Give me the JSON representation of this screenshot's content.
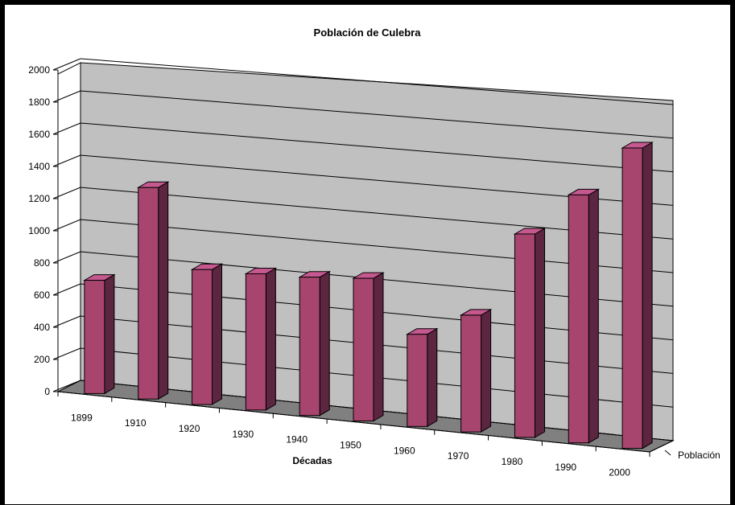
{
  "chart_data": {
    "type": "bar",
    "title": "Población de Culebra",
    "xlabel": "Décadas",
    "ylabel": "",
    "ylim": [
      0,
      2000
    ],
    "y_ticks": [
      0,
      200,
      400,
      600,
      800,
      1000,
      1200,
      1400,
      1600,
      1800,
      2000
    ],
    "categories": [
      "1899",
      "1910",
      "1920",
      "1930",
      "1940",
      "1950",
      "1960",
      "1970",
      "1980",
      "1990",
      "2000"
    ],
    "series": [
      {
        "name": "Población",
        "values": [
          704,
          1315,
          839,
          847,
          860,
          887,
          573,
          726,
          1265,
          1542,
          1868
        ]
      }
    ],
    "grid": true,
    "style": "3d-column",
    "colors": {
      "bar_front": "#a8456f",
      "bar_side": "#5c2540",
      "bar_top": "#c65890",
      "wall": "#c0c0c0",
      "floor": "#808080"
    }
  }
}
